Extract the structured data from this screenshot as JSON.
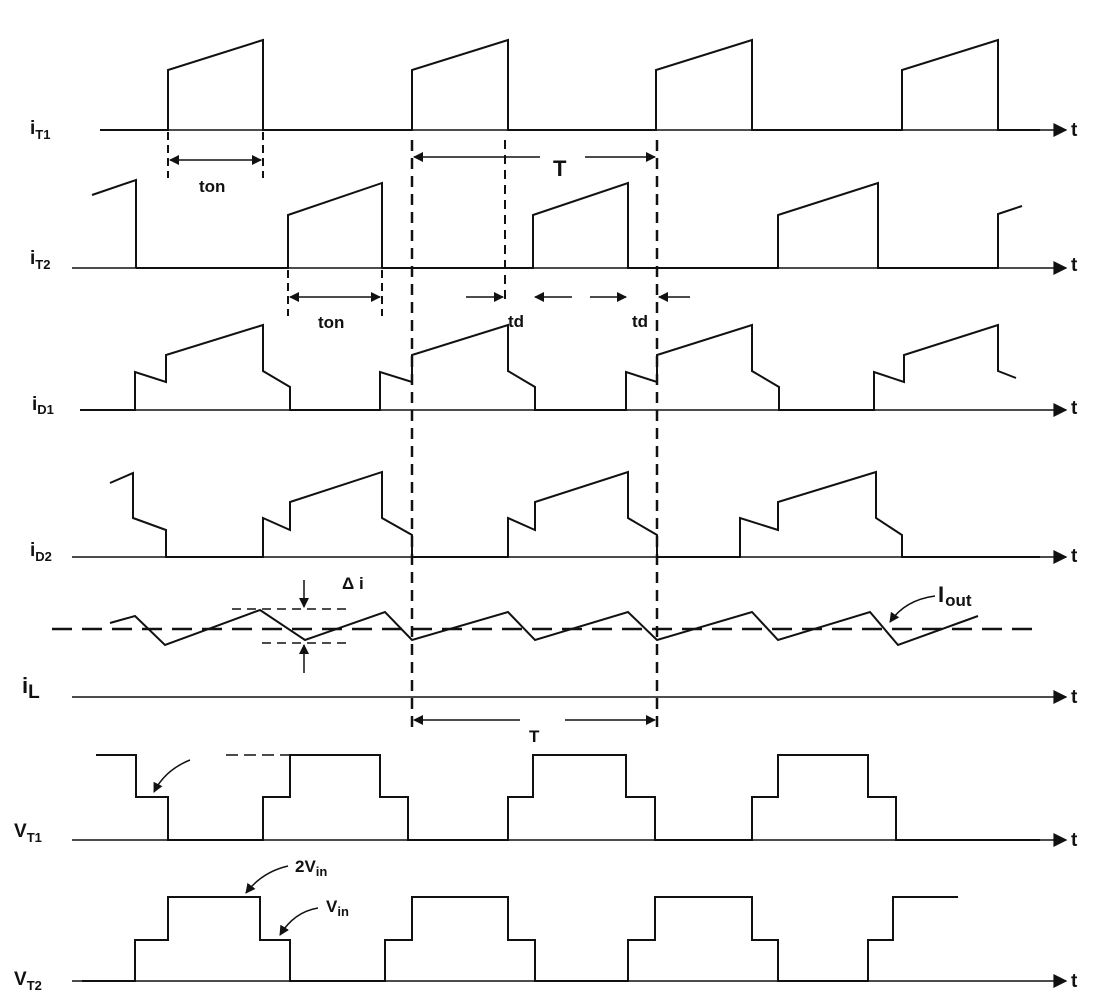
{
  "signals": {
    "iT1": {
      "main": "i",
      "sub": "T1"
    },
    "iT2": {
      "main": "i",
      "sub": "T2"
    },
    "iD1": {
      "main": "i",
      "sub": "D1"
    },
    "iD2": {
      "main": "i",
      "sub": "D2"
    },
    "iL": {
      "main": "i",
      "sub": "L"
    },
    "VT1": {
      "main": "V",
      "sub": "T1"
    },
    "VT2": {
      "main": "V",
      "sub": "T2"
    }
  },
  "time_label": "t",
  "annotations": {
    "ton": "ton",
    "period": "T",
    "td": "td",
    "delta_i": "Δ i",
    "iout_main": "I",
    "iout_sub": "out",
    "two_vin_prefix": "2V",
    "vin_main": "V",
    "vin_sub": "in"
  },
  "colors": {
    "ink": "#111111",
    "background": "#ffffff"
  }
}
